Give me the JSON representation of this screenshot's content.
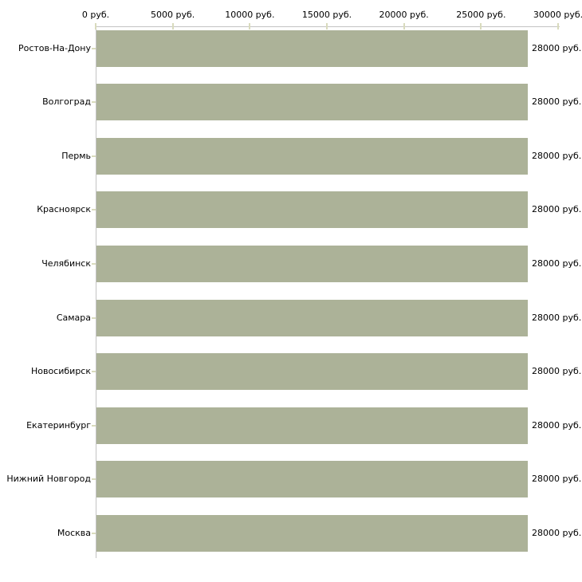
{
  "chart_data": {
    "type": "bar",
    "orientation": "horizontal",
    "title": "",
    "categories": [
      "Ростов-На-Дону",
      "Волгоград",
      "Пермь",
      "Красноярск",
      "Челябинск",
      "Самара",
      "Новосибирск",
      "Екатеринбург",
      "Нижний Новгород",
      "Москва"
    ],
    "values": [
      28000,
      28000,
      28000,
      28000,
      28000,
      28000,
      28000,
      28000,
      28000,
      28000
    ],
    "value_labels": [
      "28000 руб.",
      "28000 руб.",
      "28000 руб.",
      "28000 руб.",
      "28000 руб.",
      "28000 руб.",
      "28000 руб.",
      "28000 руб.",
      "28000 руб.",
      "28000 руб."
    ],
    "x_axis": {
      "position": "top",
      "min": 0,
      "max": 30000,
      "tick_step": 5000,
      "tick_labels": [
        "0 руб.",
        "5000 руб.",
        "10000 руб.",
        "15000 руб.",
        "20000 руб.",
        "25000 руб.",
        "30000 руб."
      ]
    },
    "ylabel": "",
    "xlabel": "",
    "grid": false,
    "legend": false,
    "colors": {
      "bar": "#acb298",
      "axis_line": "#c3c3c3",
      "tick_mark": "#d9dbbd",
      "text": "#000000",
      "background": "#ffffff"
    }
  }
}
